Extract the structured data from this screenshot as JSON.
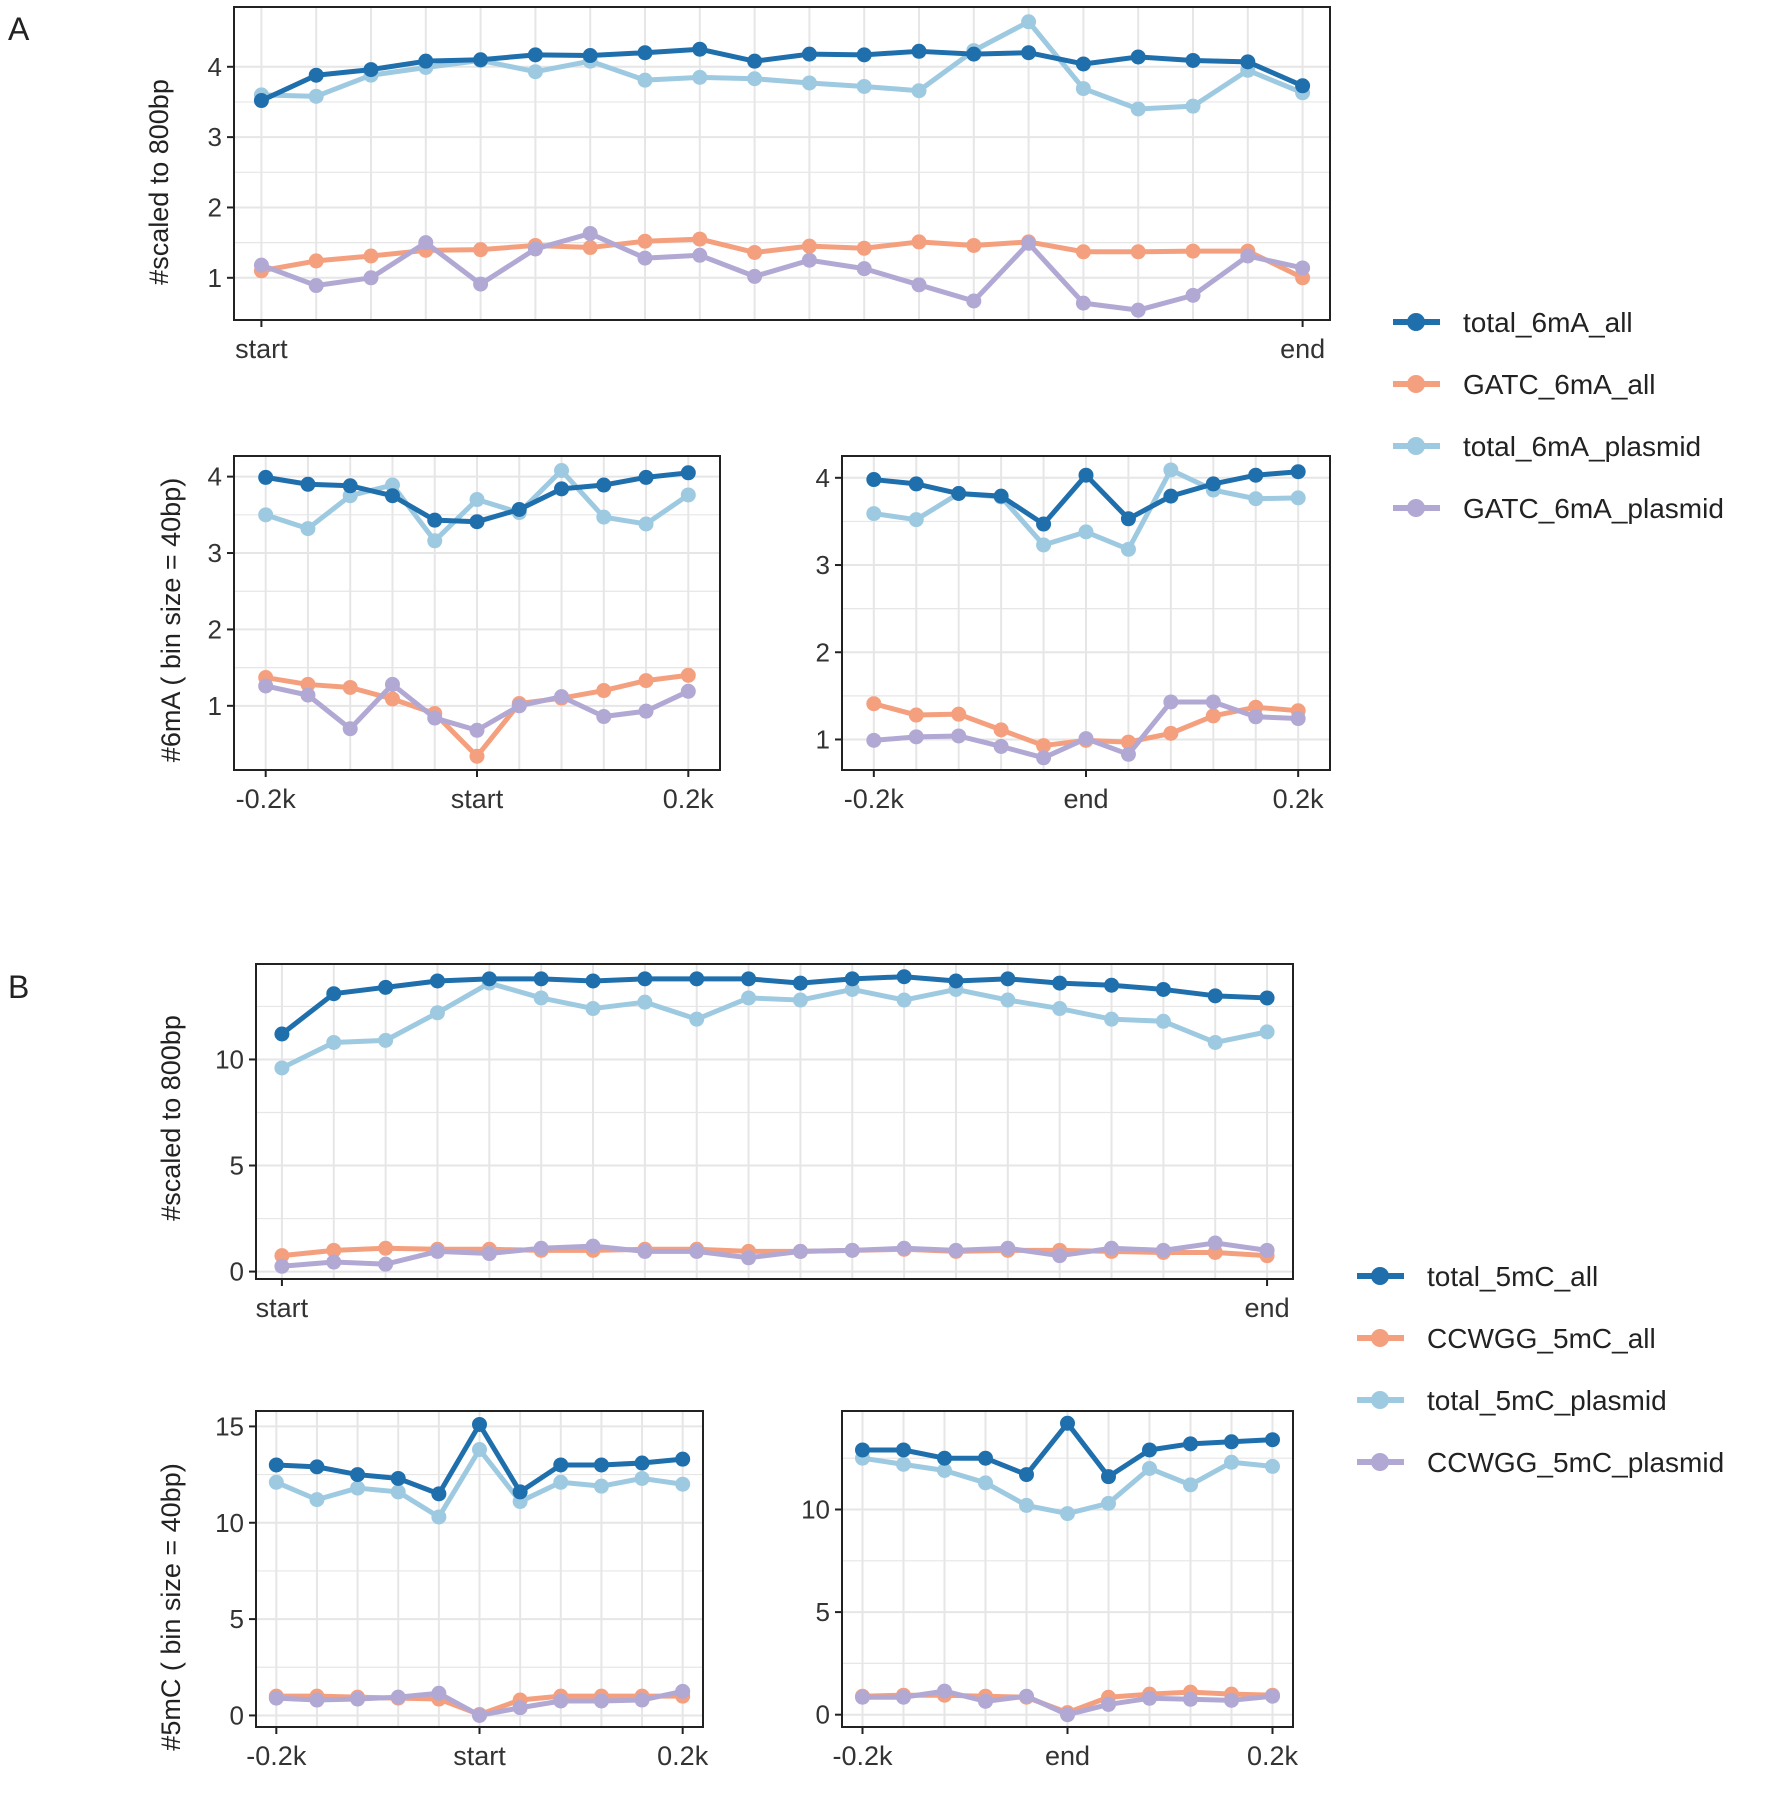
{
  "colors": {
    "total_all": "#1f6fad",
    "motif_all": "#f4a07f",
    "total_plasmid": "#9ecae1",
    "motif_plasmid": "#b2a8d4",
    "grid": "#e6e6e6",
    "axis": "#222222",
    "text": "#222222",
    "tick_text": "#333333"
  },
  "panels": [
    {
      "label": "A",
      "legend": [
        "total_6mA_all",
        "GATC_6mA_all",
        "total_6mA_plasmid",
        "GATC_6mA_plasmid"
      ]
    },
    {
      "label": "B",
      "legend": [
        "total_5mC_all",
        "CCWGG_5mC_all",
        "total_5mC_plasmid",
        "CCWGG_5mC_plasmid"
      ]
    }
  ],
  "ylabels": {
    "A_body": "#scaled to 800bp",
    "A_flank": "#6mA ( bin size = 40bp)",
    "B_body": "#scaled to 800bp",
    "B_flank": "#5mC ( bin size = 40bp)"
  },
  "chart_data": [
    {
      "id": "A_body",
      "type": "line",
      "title": "",
      "ylabel": "#scaled to 800bp",
      "xlim": [
        0,
        20
      ],
      "ylim": [
        0.4,
        4.85
      ],
      "yticks": [
        1,
        2,
        3,
        4
      ],
      "yminor": [
        1.5,
        2.5,
        3.5
      ],
      "xticks": [
        {
          "x": 0,
          "label": "start"
        },
        {
          "x": 19,
          "label": "end"
        }
      ],
      "series": [
        {
          "name": "total_6mA_all",
          "values": [
            3.52,
            3.88,
            3.96,
            4.08,
            4.1,
            4.17,
            4.16,
            4.2,
            4.25,
            4.08,
            4.18,
            4.17,
            4.22,
            4.18,
            4.2,
            4.04,
            4.14,
            4.09,
            4.07,
            3.73
          ]
        },
        {
          "name": "GATC_6mA_all",
          "values": [
            1.1,
            1.24,
            1.31,
            1.39,
            1.4,
            1.46,
            1.43,
            1.52,
            1.55,
            1.36,
            1.45,
            1.42,
            1.51,
            1.46,
            1.51,
            1.37,
            1.37,
            1.38,
            1.38,
            1.0
          ]
        },
        {
          "name": "total_6mA_plasmid",
          "values": [
            3.6,
            3.58,
            3.88,
            3.99,
            4.09,
            3.93,
            4.08,
            3.81,
            3.85,
            3.83,
            3.77,
            3.72,
            3.66,
            4.23,
            4.64,
            3.69,
            3.4,
            3.44,
            3.95,
            3.63
          ]
        },
        {
          "name": "GATC_6mA_plasmid",
          "values": [
            1.18,
            0.89,
            1.0,
            1.5,
            0.91,
            1.41,
            1.63,
            1.28,
            1.32,
            1.02,
            1.25,
            1.13,
            0.9,
            0.67,
            1.49,
            0.64,
            0.54,
            0.75,
            1.31,
            1.14
          ]
        }
      ]
    },
    {
      "id": "A_start",
      "type": "line",
      "ylabel": "#6mA ( bin size = 40bp)",
      "xlim": [
        -0.23,
        0.23
      ],
      "ylim": [
        0.16,
        4.27
      ],
      "yticks": [
        1,
        2,
        3,
        4
      ],
      "yminor": [
        1.5,
        2.5,
        3.5
      ],
      "xticks": [
        {
          "x": -0.2,
          "label": "-0.2k"
        },
        {
          "x": 0,
          "label": "start"
        },
        {
          "x": 0.2,
          "label": "0.2k"
        }
      ],
      "x": [
        -0.2,
        -0.16,
        -0.12,
        -0.08,
        -0.04,
        0,
        0.04,
        0.08,
        0.12,
        0.16,
        0.2
      ],
      "series": [
        {
          "name": "total_6mA_all",
          "values": [
            3.99,
            3.9,
            3.88,
            3.75,
            3.43,
            3.41,
            3.57,
            3.84,
            3.89,
            3.99,
            4.05
          ]
        },
        {
          "name": "GATC_6mA_all",
          "values": [
            1.37,
            1.28,
            1.24,
            1.09,
            0.9,
            0.34,
            1.03,
            1.1,
            1.2,
            1.33,
            1.4
          ]
        },
        {
          "name": "total_6mA_plasmid",
          "values": [
            3.5,
            3.32,
            3.75,
            3.89,
            3.16,
            3.7,
            3.53,
            4.08,
            3.47,
            3.38,
            3.76
          ]
        },
        {
          "name": "GATC_6mA_plasmid",
          "values": [
            1.26,
            1.14,
            0.7,
            1.28,
            0.84,
            0.68,
            1.0,
            1.12,
            0.86,
            0.93,
            1.19
          ]
        }
      ]
    },
    {
      "id": "A_end",
      "type": "line",
      "ylabel": "",
      "xlim": [
        -0.23,
        0.23
      ],
      "ylim": [
        0.65,
        4.25
      ],
      "yticks": [
        1,
        2,
        3,
        4
      ],
      "yminor": [
        1.5,
        2.5,
        3.5
      ],
      "xticks": [
        {
          "x": -0.2,
          "label": "-0.2k"
        },
        {
          "x": 0,
          "label": "end"
        },
        {
          "x": 0.2,
          "label": "0.2k"
        }
      ],
      "x": [
        -0.2,
        -0.16,
        -0.12,
        -0.08,
        -0.04,
        0,
        0.04,
        0.08,
        0.12,
        0.16,
        0.2
      ],
      "series": [
        {
          "name": "total_6mA_all",
          "values": [
            3.98,
            3.93,
            3.82,
            3.79,
            3.47,
            4.03,
            3.53,
            3.79,
            3.93,
            4.03,
            4.07
          ]
        },
        {
          "name": "GATC_6mA_all",
          "values": [
            1.41,
            1.28,
            1.29,
            1.11,
            0.93,
            0.99,
            0.97,
            1.07,
            1.27,
            1.37,
            1.33
          ]
        },
        {
          "name": "total_6mA_plasmid",
          "values": [
            3.59,
            3.52,
            3.82,
            3.78,
            3.23,
            3.38,
            3.18,
            4.09,
            3.86,
            3.76,
            3.77
          ]
        },
        {
          "name": "GATC_6mA_plasmid",
          "values": [
            0.99,
            1.03,
            1.04,
            0.92,
            0.79,
            1.01,
            0.83,
            1.43,
            1.43,
            1.26,
            1.24
          ]
        }
      ]
    },
    {
      "id": "B_body",
      "type": "line",
      "title": "",
      "ylabel": "#scaled to 800bp",
      "xlim": [
        0,
        20
      ],
      "ylim": [
        -0.35,
        14.5
      ],
      "yticks": [
        0,
        5,
        10
      ],
      "yminor": [
        2.5,
        7.5,
        12.5
      ],
      "xticks": [
        {
          "x": 0,
          "label": "start"
        },
        {
          "x": 19,
          "label": "end"
        }
      ],
      "series": [
        {
          "name": "total_5mC_all",
          "values": [
            11.2,
            13.1,
            13.4,
            13.7,
            13.8,
            13.8,
            13.7,
            13.8,
            13.8,
            13.8,
            13.6,
            13.8,
            13.9,
            13.7,
            13.8,
            13.6,
            13.5,
            13.3,
            13.0,
            12.9
          ]
        },
        {
          "name": "CCWGG_5mC_all",
          "values": [
            0.75,
            1.0,
            1.1,
            1.05,
            1.05,
            1.0,
            1.0,
            1.05,
            1.05,
            0.95,
            0.95,
            1.0,
            1.05,
            0.95,
            1.0,
            1.0,
            0.95,
            0.9,
            0.9,
            0.75
          ]
        },
        {
          "name": "total_5mC_plasmid",
          "values": [
            9.6,
            10.8,
            10.9,
            12.2,
            13.6,
            12.9,
            12.4,
            12.7,
            11.9,
            12.9,
            12.8,
            13.3,
            12.8,
            13.3,
            12.8,
            12.4,
            11.9,
            11.8,
            10.8,
            11.3
          ]
        },
        {
          "name": "CCWGG_5mC_plasmid",
          "values": [
            0.25,
            0.45,
            0.35,
            0.95,
            0.85,
            1.1,
            1.2,
            0.95,
            0.95,
            0.65,
            0.95,
            1.0,
            1.1,
            1.0,
            1.1,
            0.75,
            1.1,
            1.0,
            1.35,
            1.0
          ]
        }
      ]
    },
    {
      "id": "B_start",
      "type": "line",
      "ylabel": "#5mC ( bin size = 40bp)",
      "xlim": [
        -0.22,
        0.22
      ],
      "ylim": [
        -0.6,
        15.8
      ],
      "yticks": [
        0,
        5,
        10,
        15
      ],
      "yminor": [
        2.5,
        7.5,
        12.5
      ],
      "xticks": [
        {
          "x": -0.2,
          "label": "-0.2k"
        },
        {
          "x": 0,
          "label": "start"
        },
        {
          "x": 0.2,
          "label": "0.2k"
        }
      ],
      "x": [
        -0.2,
        -0.16,
        -0.12,
        -0.08,
        -0.04,
        0,
        0.04,
        0.08,
        0.12,
        0.16,
        0.2
      ],
      "series": [
        {
          "name": "total_5mC_all",
          "values": [
            13.0,
            12.9,
            12.5,
            12.3,
            11.5,
            15.1,
            11.6,
            13.0,
            13.0,
            13.1,
            13.3
          ]
        },
        {
          "name": "CCWGG_5mC_all",
          "values": [
            1.0,
            1.0,
            0.95,
            0.9,
            0.85,
            0.05,
            0.8,
            1.0,
            1.0,
            1.0,
            1.0
          ]
        },
        {
          "name": "total_5mC_plasmid",
          "values": [
            12.1,
            11.2,
            11.8,
            11.6,
            10.3,
            13.8,
            11.1,
            12.1,
            11.9,
            12.3,
            12.0
          ]
        },
        {
          "name": "CCWGG_5mC_plasmid",
          "values": [
            0.9,
            0.8,
            0.85,
            0.95,
            1.15,
            0.0,
            0.4,
            0.75,
            0.75,
            0.8,
            1.25
          ]
        }
      ]
    },
    {
      "id": "B_end",
      "type": "line",
      "ylabel": "",
      "xlim": [
        -0.22,
        0.22
      ],
      "ylim": [
        -0.6,
        14.8
      ],
      "yticks": [
        0,
        5,
        10
      ],
      "yminor": [
        2.5,
        7.5,
        12.5
      ],
      "xticks": [
        {
          "x": -0.2,
          "label": "-0.2k"
        },
        {
          "x": 0,
          "label": "end"
        },
        {
          "x": 0.2,
          "label": "0.2k"
        }
      ],
      "x": [
        -0.2,
        -0.16,
        -0.12,
        -0.08,
        -0.04,
        0,
        0.04,
        0.08,
        0.12,
        0.16,
        0.2
      ],
      "series": [
        {
          "name": "total_5mC_all",
          "values": [
            12.9,
            12.9,
            12.5,
            12.5,
            11.7,
            14.2,
            11.6,
            12.9,
            13.2,
            13.3,
            13.4
          ]
        },
        {
          "name": "CCWGG_5mC_all",
          "values": [
            0.9,
            0.95,
            0.95,
            0.9,
            0.85,
            0.1,
            0.85,
            1.0,
            1.1,
            1.0,
            0.95
          ]
        },
        {
          "name": "total_5mC_plasmid",
          "values": [
            12.5,
            12.2,
            11.9,
            11.3,
            10.2,
            9.8,
            10.3,
            12.0,
            11.2,
            12.3,
            12.1
          ]
        },
        {
          "name": "CCWGG_5mC_plasmid",
          "values": [
            0.85,
            0.85,
            1.15,
            0.65,
            0.9,
            0.0,
            0.5,
            0.8,
            0.75,
            0.7,
            0.9
          ]
        }
      ]
    }
  ]
}
